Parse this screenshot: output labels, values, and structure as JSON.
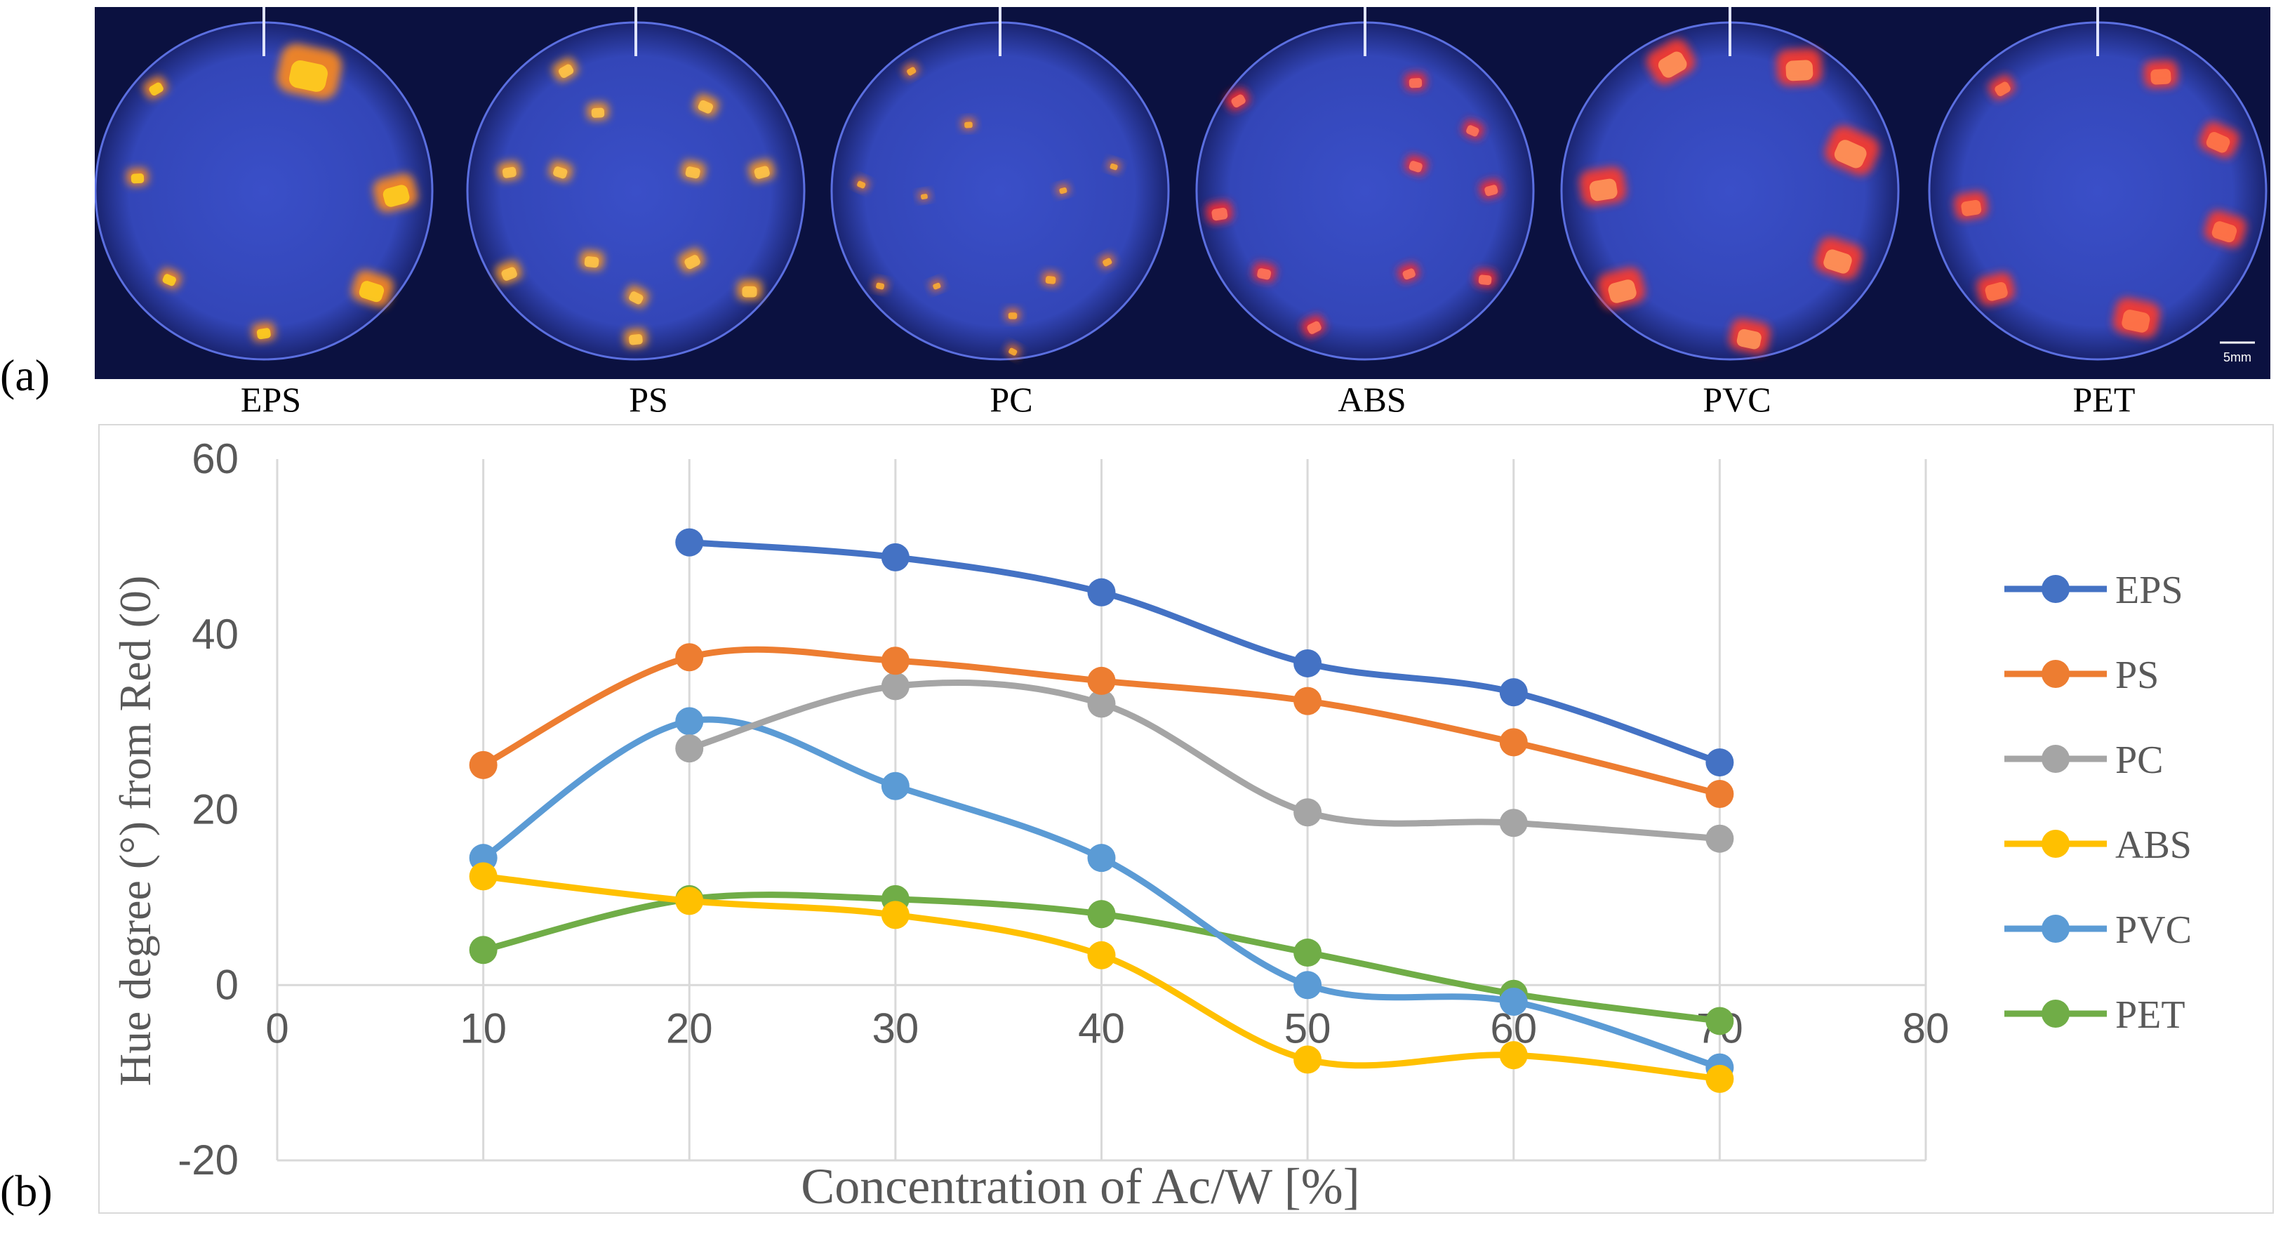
{
  "figure": {
    "panel_a_label": "(a)",
    "panel_b_label": "(b)",
    "scale_bar_label": "5mm"
  },
  "samples": [
    {
      "name": "EPS",
      "glow": [
        "#ff8a1a",
        "#ffd21f"
      ]
    },
    {
      "name": "PS",
      "glow": [
        "#ff9a1a",
        "#ffc84a"
      ]
    },
    {
      "name": "PC",
      "glow": [
        "#ff7a20",
        "#ffb030"
      ]
    },
    {
      "name": "ABS",
      "glow": [
        "#ff2a2a",
        "#ff7a5a"
      ]
    },
    {
      "name": "PVC",
      "glow": [
        "#ff3a2a",
        "#ff9a5a"
      ]
    },
    {
      "name": "PET",
      "glow": [
        "#ff3a2a",
        "#ff7a4a"
      ]
    }
  ],
  "chart_data": {
    "type": "line",
    "title": "",
    "xlabel": "Concentration of Ac/W [%]",
    "ylabel": "Hue degree (°) from Red (0)",
    "xlim": [
      0,
      80
    ],
    "ylim": [
      -20,
      60
    ],
    "x_ticks": [
      0,
      10,
      20,
      30,
      40,
      50,
      60,
      70,
      80
    ],
    "y_ticks": [
      -20,
      0,
      20,
      40,
      60
    ],
    "grid": "vertical",
    "legend_position": "right",
    "smooth": true,
    "series": [
      {
        "name": "EPS",
        "color": "#4472c4",
        "x": [
          20,
          30,
          40,
          50,
          60,
          70
        ],
        "y": [
          50.5,
          48.8,
          44.8,
          36.7,
          33.4,
          25.4
        ]
      },
      {
        "name": "PS",
        "color": "#ed7d31",
        "x": [
          10,
          20,
          30,
          40,
          50,
          60,
          70
        ],
        "y": [
          25.1,
          37.4,
          37.0,
          34.7,
          32.4,
          27.7,
          21.8
        ]
      },
      {
        "name": "PC",
        "color": "#a5a5a5",
        "x": [
          20,
          30,
          40,
          50,
          60,
          70
        ],
        "y": [
          27.0,
          34.1,
          32.1,
          19.7,
          18.5,
          16.7
        ]
      },
      {
        "name": "ABS",
        "color": "#ffc000",
        "x": [
          10,
          20,
          30,
          40,
          50,
          60,
          70
        ],
        "y": [
          12.4,
          9.6,
          8.0,
          3.4,
          -8.5,
          -8.0,
          -10.7
        ]
      },
      {
        "name": "PVC",
        "color": "#5b9bd5",
        "x": [
          10,
          20,
          30,
          40,
          50,
          60,
          70
        ],
        "y": [
          14.5,
          30.1,
          22.7,
          14.5,
          0.0,
          -1.9,
          -9.4
        ]
      },
      {
        "name": "PET",
        "color": "#70ad47",
        "x": [
          10,
          20,
          30,
          40,
          50,
          60,
          70
        ],
        "y": [
          4.0,
          9.8,
          9.8,
          8.1,
          3.7,
          -1.0,
          -4.1
        ]
      }
    ]
  }
}
